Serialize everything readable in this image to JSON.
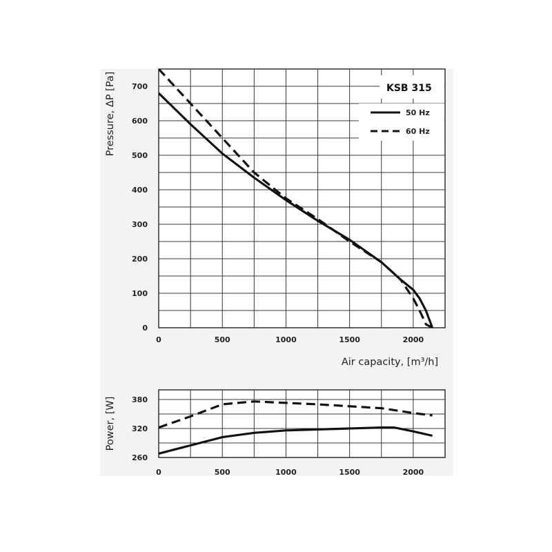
{
  "chart_data": [
    {
      "type": "line",
      "title": "KSB 315",
      "xlabel": "Air capacity, [m³/h]",
      "ylabel": "Pressure, ΔP [Pa]",
      "xlim": [
        0,
        2250
      ],
      "ylim": [
        0,
        750
      ],
      "x_ticks": [
        0,
        500,
        1000,
        1500,
        2000
      ],
      "y_ticks": [
        0,
        100,
        200,
        300,
        400,
        500,
        600,
        700
      ],
      "grid": true,
      "legend_position": "top-right",
      "series": [
        {
          "name": "50 Hz",
          "style": "solid",
          "points": [
            [
              0,
              680
            ],
            [
              250,
              590
            ],
            [
              500,
              505
            ],
            [
              750,
              435
            ],
            [
              1000,
              370
            ],
            [
              1250,
              310
            ],
            [
              1500,
              255
            ],
            [
              1750,
              190
            ],
            [
              1900,
              140
            ],
            [
              2000,
              110
            ],
            [
              2050,
              85
            ],
            [
              2100,
              50
            ],
            [
              2150,
              0
            ]
          ]
        },
        {
          "name": "60 Hz",
          "style": "dashed",
          "points": [
            [
              0,
              750
            ],
            [
              250,
              650
            ],
            [
              500,
              550
            ],
            [
              750,
              450
            ],
            [
              1000,
              375
            ],
            [
              1250,
              315
            ],
            [
              1500,
              250
            ],
            [
              1750,
              190
            ],
            [
              1900,
              140
            ],
            [
              2000,
              85
            ],
            [
              2050,
              50
            ],
            [
              2100,
              10
            ],
            [
              2150,
              0
            ]
          ]
        }
      ]
    },
    {
      "type": "line",
      "xlabel": "",
      "ylabel": "Power, [W]",
      "xlim": [
        0,
        2250
      ],
      "ylim": [
        260,
        400
      ],
      "x_ticks": [
        0,
        500,
        1000,
        1500,
        2000
      ],
      "y_ticks": [
        260,
        320,
        380
      ],
      "grid": true,
      "series": [
        {
          "name": "50 Hz",
          "style": "solid",
          "points": [
            [
              0,
              268
            ],
            [
              250,
              285
            ],
            [
              500,
              302
            ],
            [
              750,
              311
            ],
            [
              1000,
              316
            ],
            [
              1250,
              318
            ],
            [
              1500,
              320
            ],
            [
              1750,
              322
            ],
            [
              1850,
              322
            ],
            [
              2000,
              314
            ],
            [
              2150,
              305
            ]
          ]
        },
        {
          "name": "60 Hz",
          "style": "dashed",
          "points": [
            [
              0,
              322
            ],
            [
              250,
              345
            ],
            [
              500,
              370
            ],
            [
              750,
              376
            ],
            [
              1000,
              373
            ],
            [
              1250,
              370
            ],
            [
              1500,
              366
            ],
            [
              1750,
              362
            ],
            [
              2000,
              352
            ],
            [
              2150,
              347
            ]
          ]
        }
      ]
    }
  ]
}
